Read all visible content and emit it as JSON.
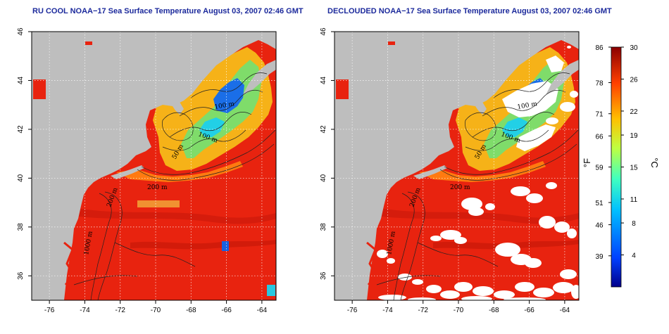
{
  "panels": [
    {
      "id": "left",
      "title": "RU COOL NOAA−17 Sea Surface Temperature August 03, 2007 02:46 GMT",
      "x_ticks": [
        "-76",
        "-74",
        "-72",
        "-70",
        "-68",
        "-66",
        "-64"
      ],
      "y_ticks": [
        "46",
        "44",
        "42",
        "40",
        "38",
        "36"
      ],
      "contour_labels": [
        "100 m",
        "100 m",
        "50 m",
        "200 m",
        "200 m",
        "1000 m"
      ],
      "clouds_removed": false
    },
    {
      "id": "right",
      "title": "DECLOUDED NOAA−17 Sea Surface Temperature August 03, 2007 02:46 GMT",
      "x_ticks": [
        "-76",
        "-74",
        "-72",
        "-70",
        "-68",
        "-66",
        "-64"
      ],
      "y_ticks": [
        "46",
        "44",
        "42",
        "40",
        "38",
        "36"
      ],
      "contour_labels": [
        "100 m",
        "100 m",
        "50 m",
        "200 m",
        "200 m",
        "1000 m"
      ],
      "clouds_removed": true
    }
  ],
  "colorbar": {
    "fahrenheit_unit": "°F",
    "celsius_unit": "°C",
    "fahrenheit_ticks": [
      "86",
      "78",
      "71",
      "66",
      "59",
      "51",
      "46",
      "39"
    ],
    "celsius_ticks": [
      "30",
      "26",
      "22",
      "19",
      "15",
      "11",
      "8",
      "4"
    ],
    "range_celsius": [
      0,
      30
    ],
    "colors": [
      "#00008b",
      "#0040ff",
      "#00c0ff",
      "#40ffc0",
      "#c0ff40",
      "#ffc000",
      "#ff4000",
      "#8b0000"
    ]
  },
  "map_colors": {
    "land": "#bebebe",
    "warm_water": "#e8230f",
    "cloud": "#ffffff"
  }
}
